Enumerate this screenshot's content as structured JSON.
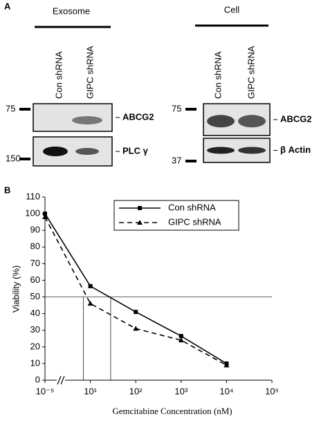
{
  "panel_a": {
    "label": "A",
    "exosome": {
      "title": "Exosome",
      "lanes": [
        "Con shRNA",
        "GIPC shRNA"
      ],
      "blots": [
        {
          "protein": "ABCG2",
          "marker": 75
        },
        {
          "protein": "PLC γ",
          "marker": 150
        }
      ]
    },
    "cell": {
      "title": "Cell",
      "lanes": [
        "Con shRNA",
        "GIPC shRNA"
      ],
      "blots": [
        {
          "protein": "ABCG2",
          "marker": 75
        },
        {
          "protein": "β Actin",
          "marker": 37
        }
      ]
    }
  },
  "chart_data": {
    "type": "line",
    "panel_label": "B",
    "x_label": "Gemcitabine Concentration (nM)",
    "y_label": "Viability (%)",
    "x": [
      1e-05,
      10,
      100,
      1000,
      10000
    ],
    "series": [
      {
        "name": "Con shRNA",
        "color": "#000000",
        "marker": "square",
        "dash": false,
        "values": [
          100,
          56.5,
          41,
          26.5,
          10
        ]
      },
      {
        "name": "GIPC shRNA",
        "color": "#000000",
        "marker": "triangle",
        "dash": true,
        "values": [
          98,
          46,
          31,
          24,
          9
        ]
      }
    ],
    "x_log": true,
    "x_axis_break": true,
    "xlim": [
      1e-05,
      100000
    ],
    "xticks": [
      {
        "value": 1e-05,
        "label": "10⁻⁵"
      },
      {
        "value": 10,
        "label": "10¹"
      },
      {
        "value": 100,
        "label": "10²"
      },
      {
        "value": 1000,
        "label": "10³"
      },
      {
        "value": 10000,
        "label": "10⁴"
      },
      {
        "value": 100000,
        "label": "10⁵"
      }
    ],
    "ylim": [
      0,
      110
    ],
    "yticks": [
      0,
      10,
      20,
      30,
      40,
      50,
      60,
      70,
      80,
      90,
      100,
      110
    ],
    "reference_lines": {
      "y": 50,
      "x": [
        7,
        28
      ]
    },
    "legend": "top"
  }
}
